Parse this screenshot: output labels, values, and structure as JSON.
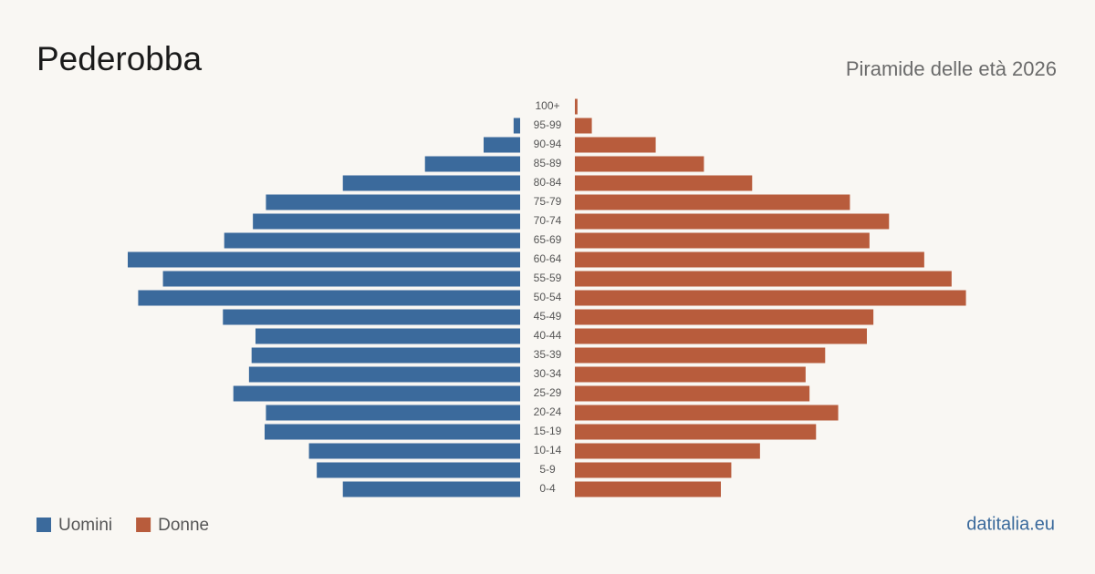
{
  "chart_data": {
    "type": "pyramid",
    "title": "Pederobba",
    "subtitle": "Piramide delle età 2026",
    "source": "datitalia.eu",
    "categories": [
      "100+",
      "95-99",
      "90-94",
      "85-89",
      "80-84",
      "75-79",
      "70-74",
      "65-69",
      "60-64",
      "55-59",
      "50-54",
      "45-49",
      "40-44",
      "35-39",
      "30-34",
      "25-29",
      "20-24",
      "15-19",
      "10-14",
      "5-9",
      "0-4"
    ],
    "series": [
      {
        "name": "Uomini",
        "color": "#3b6a9c",
        "values": [
          0,
          5,
          28,
          73,
          136,
          195,
          205,
          227,
          301,
          274,
          293,
          228,
          203,
          206,
          208,
          220,
          195,
          196,
          162,
          156,
          136
        ]
      },
      {
        "name": "Donne",
        "color": "#b85c3c",
        "values": [
          2,
          13,
          62,
          99,
          136,
          211,
          241,
          226,
          268,
          289,
          300,
          229,
          224,
          192,
          177,
          180,
          202,
          185,
          142,
          120,
          112
        ]
      }
    ]
  }
}
